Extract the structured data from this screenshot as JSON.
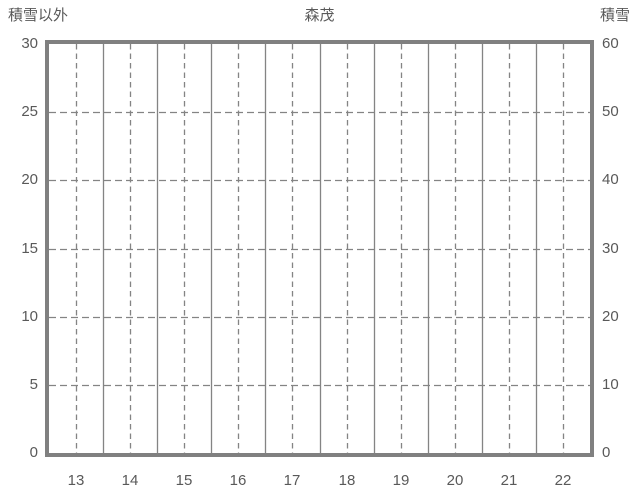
{
  "colors": {
    "axis_border": "#808080",
    "gridline": "#848484",
    "text": "#595959",
    "background": "#ffffff"
  },
  "chart_data": {
    "type": "line",
    "title": "森茂",
    "left_axis": {
      "label": "積雪以外",
      "min": 0,
      "max": 30,
      "tick_step": 5,
      "ticks": [
        0,
        5,
        10,
        15,
        20,
        25,
        30
      ]
    },
    "right_axis": {
      "label": "積雪",
      "min": 0,
      "max": 60,
      "tick_step": 10,
      "ticks": [
        0,
        10,
        20,
        30,
        40,
        50,
        60
      ]
    },
    "x_axis": {
      "categories": [
        "13",
        "14",
        "15",
        "16",
        "17",
        "18",
        "19",
        "20",
        "21",
        "22"
      ]
    },
    "series": [],
    "layout_hints": {
      "grid_vertical_boundaries": "solid",
      "grid_vertical_centers": "dashed",
      "grid_horizontal": "dashed",
      "legend": "none",
      "plot_is_empty": true
    }
  }
}
